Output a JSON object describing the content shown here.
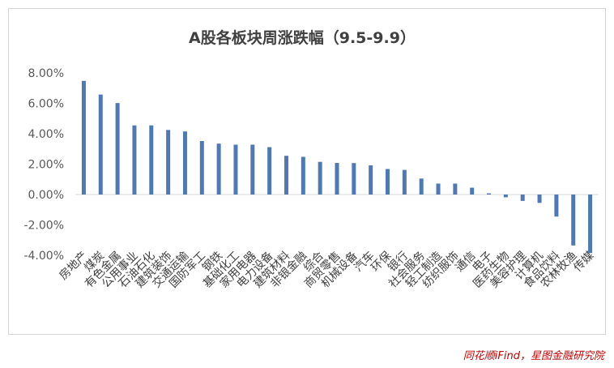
{
  "chart_data": {
    "type": "bar",
    "title": "A股各板块周涨跌幅（9.5-9.9）",
    "xlabel": "",
    "ylabel": "",
    "ylim": [
      -4,
      8
    ],
    "yticks": [
      "8.00%",
      "6.00%",
      "4.00%",
      "2.00%",
      "0.00%",
      "-2.00%",
      "-4.00%"
    ],
    "bar_color": "#4e79b5",
    "categories": [
      "房地产",
      "煤炭",
      "有色金属",
      "公用事业",
      "石油石化",
      "建筑装饰",
      "交通运输",
      "国防军工",
      "钢铁",
      "基础化工",
      "家用电器",
      "电力设备",
      "建筑材料",
      "非银金融",
      "综合",
      "商贸零售",
      "机械设备",
      "汽车",
      "环保",
      "银行",
      "社会服务",
      "轻工制造",
      "纺织服饰",
      "通信",
      "电子",
      "医药生物",
      "美容护理",
      "计算机",
      "食品饮料",
      "农林牧渔",
      "传媒"
    ],
    "values": [
      7.48,
      6.58,
      6.02,
      4.55,
      4.55,
      4.25,
      4.15,
      3.52,
      3.35,
      3.28,
      3.28,
      3.12,
      2.55,
      2.48,
      2.15,
      2.08,
      2.07,
      1.92,
      1.68,
      1.62,
      1.05,
      0.72,
      0.72,
      0.45,
      0.08,
      -0.18,
      -0.42,
      -0.55,
      -1.45,
      -3.35,
      -3.85
    ]
  },
  "source": "同花顺iFind，星图金融研究院"
}
